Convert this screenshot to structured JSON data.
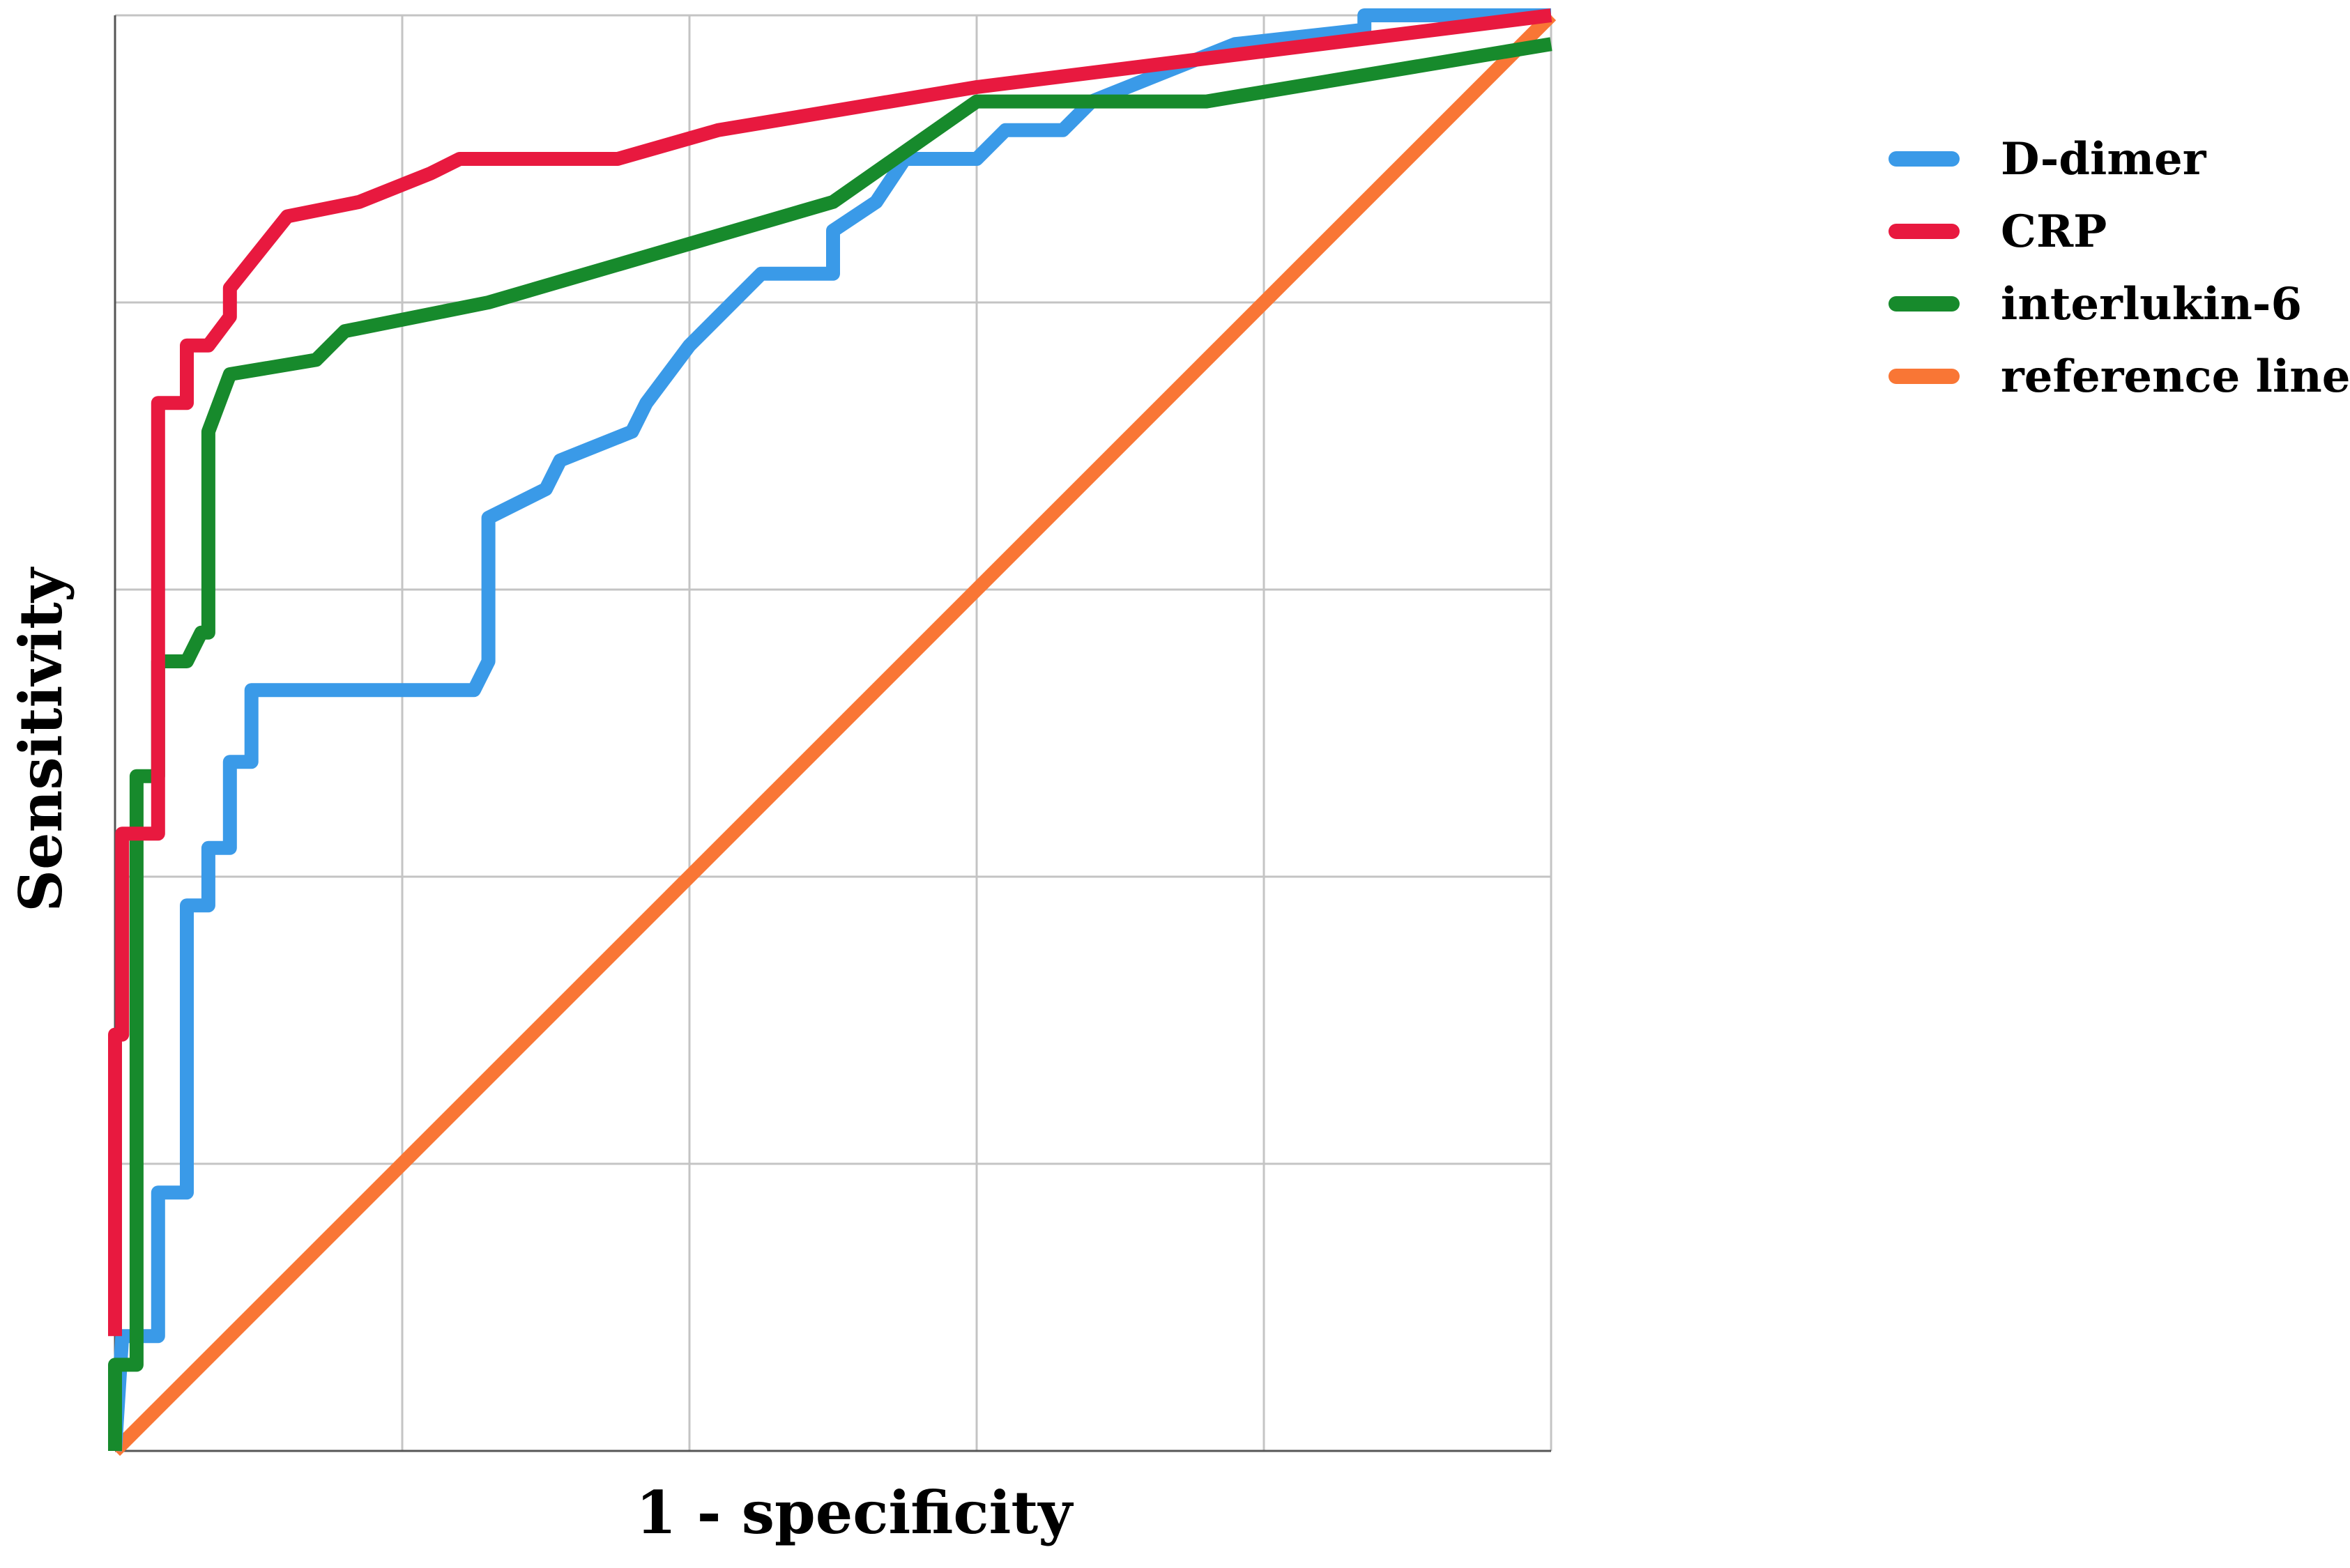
{
  "chart_data": {
    "type": "line",
    "title": "",
    "xlabel": "1 - specificity",
    "ylabel": "Sensitivity",
    "xlim": [
      0,
      1
    ],
    "ylim": [
      0,
      1
    ],
    "grid": true,
    "gridlines": [
      0.2,
      0.4,
      0.6,
      0.8,
      1.0
    ],
    "legend_position": "top-right",
    "series": [
      {
        "name": "D-dimer",
        "color": "#3a9ae8",
        "points": [
          [
            0,
            0
          ],
          [
            0.005,
            0.08
          ],
          [
            0.03,
            0.08
          ],
          [
            0.03,
            0.18
          ],
          [
            0.05,
            0.18
          ],
          [
            0.05,
            0.38
          ],
          [
            0.065,
            0.38
          ],
          [
            0.065,
            0.42
          ],
          [
            0.08,
            0.42
          ],
          [
            0.08,
            0.48
          ],
          [
            0.095,
            0.48
          ],
          [
            0.095,
            0.53
          ],
          [
            0.25,
            0.53
          ],
          [
            0.26,
            0.55
          ],
          [
            0.26,
            0.65
          ],
          [
            0.3,
            0.67
          ],
          [
            0.31,
            0.69
          ],
          [
            0.36,
            0.71
          ],
          [
            0.37,
            0.73
          ],
          [
            0.385,
            0.75
          ],
          [
            0.4,
            0.77
          ],
          [
            0.43,
            0.8
          ],
          [
            0.45,
            0.82
          ],
          [
            0.5,
            0.82
          ],
          [
            0.5,
            0.85
          ],
          [
            0.53,
            0.87
          ],
          [
            0.55,
            0.9
          ],
          [
            0.6,
            0.9
          ],
          [
            0.62,
            0.92
          ],
          [
            0.66,
            0.92
          ],
          [
            0.68,
            0.94
          ],
          [
            0.73,
            0.96
          ],
          [
            0.78,
            0.98
          ],
          [
            0.87,
            0.99
          ],
          [
            0.87,
            1.0
          ],
          [
            1.0,
            1.0
          ]
        ]
      },
      {
        "name": "CRP",
        "color": "#e8193f",
        "points": [
          [
            0,
            0.08
          ],
          [
            0,
            0.29
          ],
          [
            0.005,
            0.29
          ],
          [
            0.005,
            0.43
          ],
          [
            0.015,
            0.43
          ],
          [
            0.03,
            0.43
          ],
          [
            0.03,
            0.73
          ],
          [
            0.05,
            0.73
          ],
          [
            0.05,
            0.77
          ],
          [
            0.065,
            0.77
          ],
          [
            0.08,
            0.79
          ],
          [
            0.08,
            0.81
          ],
          [
            0.12,
            0.86
          ],
          [
            0.17,
            0.87
          ],
          [
            0.22,
            0.89
          ],
          [
            0.24,
            0.9
          ],
          [
            0.28,
            0.9
          ],
          [
            0.35,
            0.9
          ],
          [
            0.42,
            0.92
          ],
          [
            0.6,
            0.95
          ],
          [
            1.0,
            1.0
          ]
        ]
      },
      {
        "name": "interlukin-6",
        "color": "#178a2c",
        "points": [
          [
            0,
            0
          ],
          [
            0,
            0.06
          ],
          [
            0.015,
            0.06
          ],
          [
            0.015,
            0.47
          ],
          [
            0.03,
            0.47
          ],
          [
            0.03,
            0.55
          ],
          [
            0.05,
            0.55
          ],
          [
            0.06,
            0.57
          ],
          [
            0.065,
            0.57
          ],
          [
            0.065,
            0.71
          ],
          [
            0.08,
            0.75
          ],
          [
            0.14,
            0.76
          ],
          [
            0.16,
            0.78
          ],
          [
            0.26,
            0.8
          ],
          [
            0.5,
            0.87
          ],
          [
            0.6,
            0.94
          ],
          [
            0.76,
            0.94
          ],
          [
            1.0,
            0.98
          ]
        ]
      },
      {
        "name": "reference line",
        "color": "#f97635",
        "points": [
          [
            0,
            0
          ],
          [
            1,
            1
          ]
        ]
      }
    ]
  }
}
